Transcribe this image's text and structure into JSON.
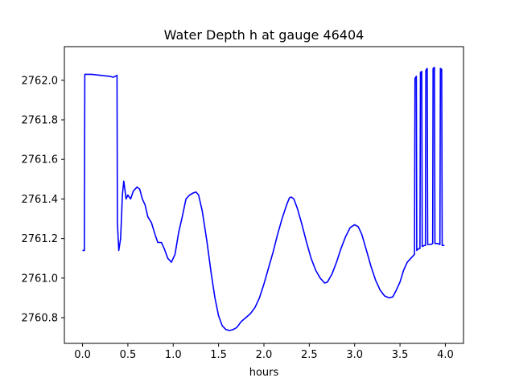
{
  "chart_data": {
    "type": "line",
    "title": "Water Depth h at gauge 46404",
    "xlabel": "hours",
    "ylabel": "",
    "xlim": [
      -0.2,
      4.2
    ],
    "ylim": [
      2760.67,
      2762.17
    ],
    "xticks": [
      0.0,
      0.5,
      1.0,
      1.5,
      2.0,
      2.5,
      3.0,
      3.5,
      4.0
    ],
    "xtick_labels": [
      "0.0",
      "0.5",
      "1.0",
      "1.5",
      "2.0",
      "2.5",
      "3.0",
      "3.5",
      "4.0"
    ],
    "yticks": [
      2760.8,
      2761.0,
      2761.2,
      2761.4,
      2761.6,
      2761.8,
      2762.0
    ],
    "ytick_labels": [
      "2760.8",
      "2761.0",
      "2761.2",
      "2761.4",
      "2761.6",
      "2761.8",
      "2762.0"
    ],
    "grid": false,
    "series": [
      {
        "color": "#0000ff",
        "points": [
          [
            0.0,
            2761.14
          ],
          [
            0.02,
            2761.14
          ],
          [
            0.025,
            2762.03
          ],
          [
            0.1,
            2762.03
          ],
          [
            0.2,
            2762.025
          ],
          [
            0.3,
            2762.02
          ],
          [
            0.34,
            2762.015
          ],
          [
            0.38,
            2762.025
          ],
          [
            0.385,
            2761.28
          ],
          [
            0.4,
            2761.14
          ],
          [
            0.42,
            2761.2
          ],
          [
            0.44,
            2761.42
          ],
          [
            0.455,
            2761.49
          ],
          [
            0.47,
            2761.44
          ],
          [
            0.48,
            2761.4
          ],
          [
            0.5,
            2761.42
          ],
          [
            0.53,
            2761.4
          ],
          [
            0.56,
            2761.44
          ],
          [
            0.6,
            2761.46
          ],
          [
            0.63,
            2761.45
          ],
          [
            0.66,
            2761.4
          ],
          [
            0.69,
            2761.37
          ],
          [
            0.72,
            2761.31
          ],
          [
            0.76,
            2761.28
          ],
          [
            0.8,
            2761.22
          ],
          [
            0.83,
            2761.18
          ],
          [
            0.87,
            2761.18
          ],
          [
            0.9,
            2761.15
          ],
          [
            0.94,
            2761.1
          ],
          [
            0.98,
            2761.08
          ],
          [
            1.02,
            2761.12
          ],
          [
            1.06,
            2761.23
          ],
          [
            1.1,
            2761.31
          ],
          [
            1.14,
            2761.4
          ],
          [
            1.18,
            2761.42
          ],
          [
            1.22,
            2761.43
          ],
          [
            1.25,
            2761.435
          ],
          [
            1.28,
            2761.42
          ],
          [
            1.32,
            2761.34
          ],
          [
            1.37,
            2761.19
          ],
          [
            1.42,
            2761.02
          ],
          [
            1.46,
            2760.9
          ],
          [
            1.5,
            2760.81
          ],
          [
            1.54,
            2760.76
          ],
          [
            1.58,
            2760.74
          ],
          [
            1.62,
            2760.735
          ],
          [
            1.66,
            2760.74
          ],
          [
            1.7,
            2760.75
          ],
          [
            1.75,
            2760.78
          ],
          [
            1.8,
            2760.8
          ],
          [
            1.85,
            2760.82
          ],
          [
            1.9,
            2760.85
          ],
          [
            1.95,
            2760.9
          ],
          [
            2.0,
            2760.97
          ],
          [
            2.05,
            2761.05
          ],
          [
            2.1,
            2761.13
          ],
          [
            2.15,
            2761.22
          ],
          [
            2.2,
            2761.3
          ],
          [
            2.25,
            2761.37
          ],
          [
            2.28,
            2761.405
          ],
          [
            2.3,
            2761.41
          ],
          [
            2.33,
            2761.4
          ],
          [
            2.37,
            2761.35
          ],
          [
            2.42,
            2761.27
          ],
          [
            2.47,
            2761.18
          ],
          [
            2.52,
            2761.1
          ],
          [
            2.57,
            2761.04
          ],
          [
            2.62,
            2761.0
          ],
          [
            2.67,
            2760.975
          ],
          [
            2.7,
            2760.98
          ],
          [
            2.75,
            2761.02
          ],
          [
            2.8,
            2761.08
          ],
          [
            2.85,
            2761.15
          ],
          [
            2.9,
            2761.21
          ],
          [
            2.95,
            2761.255
          ],
          [
            3.0,
            2761.27
          ],
          [
            3.04,
            2761.26
          ],
          [
            3.08,
            2761.22
          ],
          [
            3.13,
            2761.14
          ],
          [
            3.18,
            2761.06
          ],
          [
            3.23,
            2760.99
          ],
          [
            3.28,
            2760.94
          ],
          [
            3.33,
            2760.91
          ],
          [
            3.38,
            2760.9
          ],
          [
            3.42,
            2760.905
          ],
          [
            3.46,
            2760.94
          ],
          [
            3.5,
            2760.98
          ],
          [
            3.54,
            2761.04
          ],
          [
            3.58,
            2761.08
          ],
          [
            3.62,
            2761.1
          ],
          [
            3.66,
            2761.12
          ],
          [
            3.665,
            2762.01
          ],
          [
            3.68,
            2762.02
          ],
          [
            3.685,
            2761.14
          ],
          [
            3.71,
            2761.15
          ],
          [
            3.72,
            2761.15
          ],
          [
            3.725,
            2762.04
          ],
          [
            3.74,
            2762.045
          ],
          [
            3.745,
            2761.16
          ],
          [
            3.77,
            2761.165
          ],
          [
            3.78,
            2761.165
          ],
          [
            3.785,
            2762.05
          ],
          [
            3.8,
            2762.06
          ],
          [
            3.805,
            2761.17
          ],
          [
            3.84,
            2761.17
          ],
          [
            3.86,
            2761.175
          ],
          [
            3.865,
            2762.06
          ],
          [
            3.88,
            2762.065
          ],
          [
            3.885,
            2761.175
          ],
          [
            3.92,
            2761.175
          ],
          [
            3.94,
            2761.17
          ],
          [
            3.945,
            2762.06
          ],
          [
            3.96,
            2762.055
          ],
          [
            3.965,
            2761.165
          ],
          [
            3.99,
            2761.165
          ]
        ]
      }
    ]
  }
}
